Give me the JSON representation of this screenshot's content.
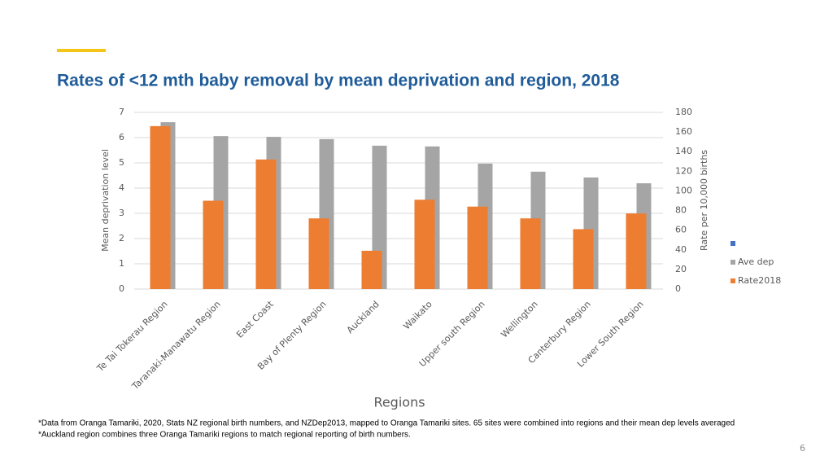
{
  "chart_data": {
    "type": "bar",
    "title": "Rates of <12 mth baby removal by mean deprivation and region, 2018",
    "categories": [
      "Te Tai Tokerau Region",
      "Taranaki-Manawatu Region",
      "East Coast",
      "Bay of Plenty Region",
      "Auckland",
      "Waikato",
      "Upper south Region",
      "Wellington",
      "Canterbury Region",
      "Lower South Region"
    ],
    "series": [
      {
        "name": "Ave dep",
        "color": "#a5a5a5",
        "values": [
          6.61,
          6.06,
          6.03,
          5.94,
          5.68,
          5.65,
          4.97,
          4.65,
          4.42,
          4.19
        ]
      },
      {
        "name": "Rate2018",
        "color": "#ed7d31",
        "axis": "y2",
        "values": [
          166,
          90,
          132,
          72,
          39,
          91,
          84,
          72,
          61,
          77
        ]
      }
    ],
    "xlabel": "Regions",
    "ylabel": "Mean deprivation level",
    "y2label": "Rate per 10,000 births",
    "ylim": [
      0,
      7
    ],
    "yticks": [
      0,
      1,
      2,
      3,
      4,
      5,
      6,
      7
    ],
    "y2lim": [
      0,
      180
    ],
    "y2ticks": [
      0,
      20,
      40,
      60,
      80,
      100,
      120,
      140,
      160,
      180
    ],
    "grid": true,
    "legend": "right"
  },
  "footnotes": [
    "*Data from Oranga Tamariki, 2020, Stats NZ regional birth numbers, and NZDep2013, mapped to Oranga Tamariki sites. 65 sites were combined into regions and their mean dep levels averaged",
    "*Auckland region combines three Oranga Tamariki regions to match regional reporting of birth numbers."
  ],
  "page_number": "6"
}
